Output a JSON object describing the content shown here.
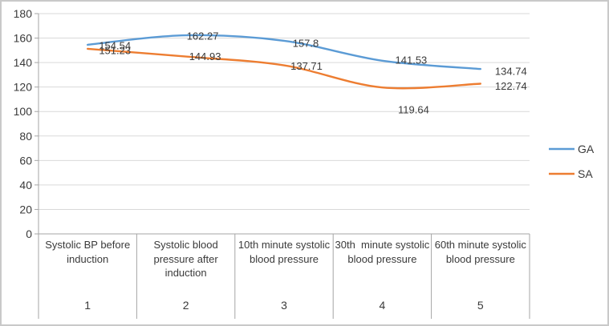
{
  "chart_data": {
    "type": "line",
    "categories": [
      "Systolic BP before induction",
      "Systolic blood pressure after induction",
      "10th minute systolic blood pressure",
      "30th  minute systolic blood pressure",
      "60th minute systolic blood pressure"
    ],
    "category_numbers": [
      "1",
      "2",
      "3",
      "4",
      "5"
    ],
    "series": [
      {
        "name": "GA",
        "color": "#5B9BD5",
        "values": [
          154.54,
          162.27,
          157.8,
          141.53,
          134.74
        ],
        "point_labels": [
          "154.54",
          "162.27",
          "157.8",
          "141.53",
          "134.74"
        ]
      },
      {
        "name": "SA",
        "color": "#ED7D31",
        "values": [
          151.23,
          144.93,
          137.71,
          119.64,
          122.74
        ],
        "point_labels": [
          "151.23",
          "144.93",
          "137.71",
          "119.64",
          "122.74"
        ]
      }
    ],
    "ylim": [
      0,
      180
    ],
    "ytick_interval": 20,
    "ytick_labels": [
      "0",
      "20",
      "40",
      "60",
      "80",
      "100",
      "120",
      "140",
      "160",
      "180"
    ],
    "grid": true,
    "legend_position": "right"
  },
  "colors": {
    "gridline": "#D9D9D9",
    "axis_line": "#A6A6A6",
    "text": "#3A3A3A",
    "background": "#FFFFFF",
    "frame_border": "#C9C9C9",
    "series_ga": "#5B9BD5",
    "series_sa": "#ED7D31"
  }
}
